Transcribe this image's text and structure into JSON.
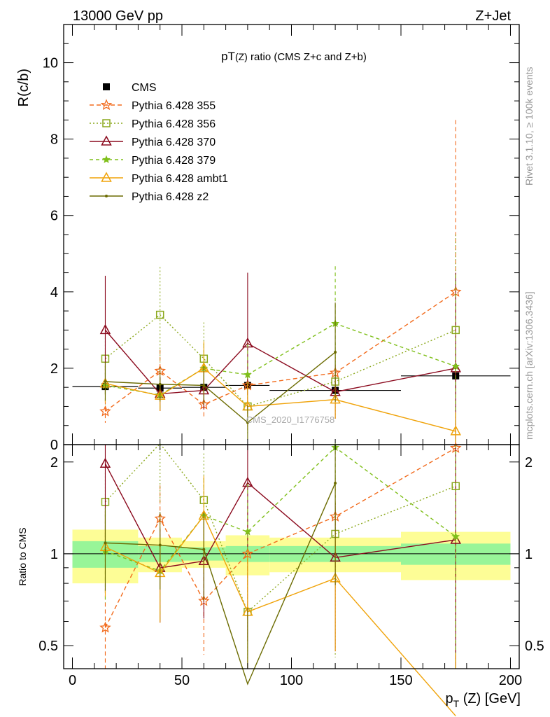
{
  "header": {
    "left": "13000 GeV pp",
    "right": "Z+Jet"
  },
  "side_labels": {
    "top": "Rivet 3.1.10, ≥ 100k events",
    "bottom": "mcplots.cern.ch [arXiv:1306.3436]"
  },
  "watermark": "CMS_2020_I1776758",
  "colors": {
    "cms": "#000000",
    "p355": "#f26b1d",
    "p356": "#8ca91e",
    "p370": "#8b0a1e",
    "p379": "#7fbf1a",
    "ambt1": "#f0a30a",
    "z2": "#6b6b00",
    "band_inner": "#98f598",
    "band_outer": "#fdfd96"
  },
  "chart_data": {
    "type": "line",
    "title": "pT(Z) ratio (CMS  Z+c and Z+b)",
    "title_parts": [
      "pT",
      "(Z)",
      " ratio (CMS  Z+c and Z+b)"
    ],
    "xlabel_parts": [
      "p",
      "T",
      " (Z) [GeV]"
    ],
    "ylabel": "R(c/b)",
    "ratio_ylabel": "Ratio to CMS",
    "xlim": [
      -4,
      204
    ],
    "ylim": [
      0,
      11
    ],
    "ratio_ylim": [
      0.42,
      2.28
    ],
    "ratio_scale": "log",
    "xticks": [
      0,
      50,
      100,
      150,
      200
    ],
    "yticks": [
      0,
      2,
      4,
      6,
      8,
      10
    ],
    "ratio_ticks": [
      0.5,
      1,
      2
    ],
    "legend_position": "top-left",
    "x": [
      15,
      40,
      60,
      80,
      120,
      175
    ],
    "bins": [
      [
        0,
        30
      ],
      [
        30,
        50
      ],
      [
        50,
        70
      ],
      [
        70,
        90
      ],
      [
        90,
        150
      ],
      [
        150,
        200
      ]
    ],
    "ratio_band_inner": [
      0.1,
      0.06,
      0.05,
      0.06,
      0.06,
      0.08
    ],
    "ratio_band_outer": [
      0.2,
      0.13,
      0.1,
      0.15,
      0.13,
      0.18
    ],
    "series": [
      {
        "name": "CMS",
        "key": "cms",
        "style": "data",
        "marker": "square",
        "values": [
          1.52,
          1.48,
          1.5,
          1.55,
          1.42,
          1.8
        ],
        "err": [
          0.2,
          0.25,
          0.2,
          0.25,
          0.2,
          0.35
        ]
      },
      {
        "name": "Pythia 6.428 355",
        "key": "p355",
        "dash": "6,4",
        "marker": "star",
        "values": [
          0.87,
          1.93,
          1.05,
          1.55,
          1.88,
          4.0
        ],
        "err": [
          0.3,
          0.55,
          0.35,
          0.6,
          0.6,
          4.5
        ]
      },
      {
        "name": "Pythia 6.428 356",
        "key": "p356",
        "dash": "2,3",
        "marker": "opensquare",
        "values": [
          2.25,
          3.4,
          2.25,
          1.0,
          1.65,
          3.0
        ],
        "err": [
          0.55,
          1.25,
          0.95,
          0.7,
          1.0,
          2.5
        ]
      },
      {
        "name": "Pythia 6.428 370",
        "key": "p370",
        "dash": "",
        "marker": "triangle",
        "values": [
          3.0,
          1.33,
          1.42,
          2.65,
          1.38,
          2.0
        ],
        "err": [
          1.42,
          0.45,
          0.5,
          1.85,
          0.7,
          2.5
        ]
      },
      {
        "name": "Pythia 6.428 379",
        "key": "p379",
        "dash": "5,4",
        "marker": "smallstar",
        "values": [
          1.55,
          1.3,
          2.0,
          1.83,
          3.17,
          2.05
        ],
        "err": [
          0.5,
          0.4,
          0.65,
          0.8,
          1.5,
          2.4
        ]
      },
      {
        "name": "Pythia 6.428 ambt1",
        "key": "ambt1",
        "dash": "",
        "marker": "triangle",
        "values": [
          1.6,
          1.28,
          2.0,
          1.0,
          1.18,
          0.35
        ],
        "err": [
          0.5,
          0.4,
          0.7,
          0.6,
          0.5,
          0.5
        ]
      },
      {
        "name": "Pythia 6.428 z2",
        "key": "z2",
        "dash": "",
        "marker": "dot",
        "values": [
          1.65,
          1.58,
          1.55,
          0.58,
          2.42,
          null
        ],
        "err": [
          0.5,
          0.45,
          0.5,
          0.45,
          1.3,
          null
        ]
      }
    ]
  }
}
